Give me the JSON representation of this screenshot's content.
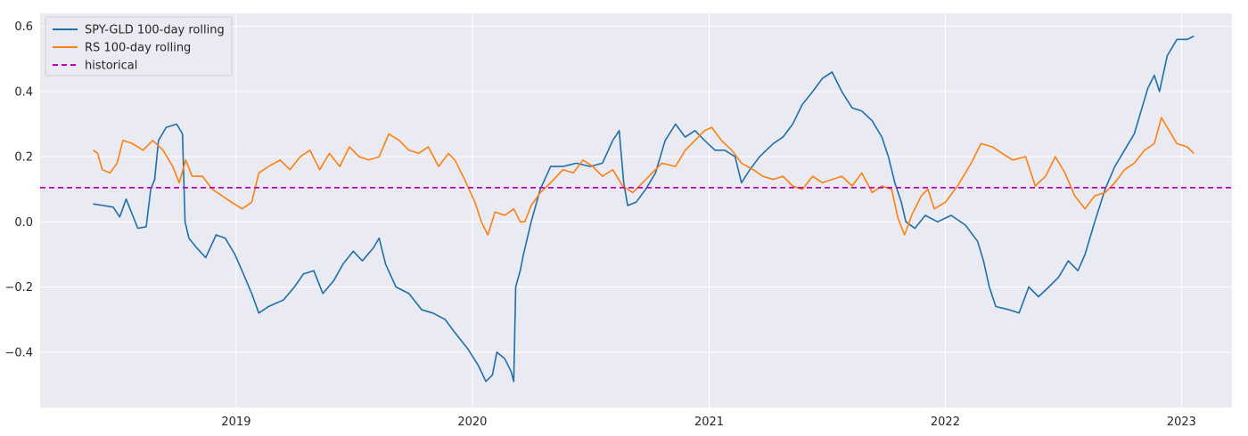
{
  "chart_data": {
    "type": "line",
    "title": "",
    "xlabel": "",
    "ylabel": "",
    "x_range": [
      "2018-03-04",
      "2023-03-20"
    ],
    "ylim": [
      -0.57,
      0.64
    ],
    "grid": true,
    "legend_position": "top-left",
    "x_ticks": [
      {
        "date": "2019-01-01",
        "label": "2019"
      },
      {
        "date": "2020-01-01",
        "label": "2020"
      },
      {
        "date": "2021-01-01",
        "label": "2021"
      },
      {
        "date": "2022-01-01",
        "label": "2022"
      },
      {
        "date": "2023-01-01",
        "label": "2023"
      }
    ],
    "y_ticks": [
      {
        "value": -0.4,
        "label": "−0.4"
      },
      {
        "value": -0.2,
        "label": "−0.2"
      },
      {
        "value": 0.0,
        "label": "0.0"
      },
      {
        "value": 0.2,
        "label": "0.2"
      },
      {
        "value": 0.4,
        "label": "0.4"
      },
      {
        "value": 0.6,
        "label": "0.6"
      }
    ],
    "colors": {
      "background": "#eaeaf2",
      "grid": "#ffffff",
      "spy_gld": "#1f6fa8",
      "rs": "#ff7f0e",
      "historical": "#bf00bf"
    },
    "series": [
      {
        "name": "SPY-GLD 100-day rolling",
        "color": "#1f6fa8",
        "style": "solid",
        "points": [
          [
            "2018-05-25",
            0.055
          ],
          [
            "2018-06-10",
            0.05
          ],
          [
            "2018-06-25",
            0.045
          ],
          [
            "2018-07-05",
            0.015
          ],
          [
            "2018-07-15",
            0.07
          ],
          [
            "2018-07-25",
            0.02
          ],
          [
            "2018-08-02",
            -0.02
          ],
          [
            "2018-08-15",
            -0.015
          ],
          [
            "2018-08-22",
            0.1
          ],
          [
            "2018-08-28",
            0.13
          ],
          [
            "2018-09-03",
            0.25
          ],
          [
            "2018-09-15",
            0.29
          ],
          [
            "2018-10-01",
            0.3
          ],
          [
            "2018-10-10",
            0.27
          ],
          [
            "2018-10-14",
            0.0
          ],
          [
            "2018-10-20",
            -0.05
          ],
          [
            "2018-11-01",
            -0.08
          ],
          [
            "2018-11-15",
            -0.11
          ],
          [
            "2018-12-01",
            -0.04
          ],
          [
            "2018-12-15",
            -0.05
          ],
          [
            "2018-12-30",
            -0.1
          ],
          [
            "2019-01-10",
            -0.15
          ],
          [
            "2019-01-25",
            -0.22
          ],
          [
            "2019-02-05",
            -0.28
          ],
          [
            "2019-02-20",
            -0.26
          ],
          [
            "2019-03-15",
            -0.24
          ],
          [
            "2019-04-01",
            -0.2
          ],
          [
            "2019-04-15",
            -0.16
          ],
          [
            "2019-05-01",
            -0.15
          ],
          [
            "2019-05-15",
            -0.22
          ],
          [
            "2019-06-01",
            -0.18
          ],
          [
            "2019-06-15",
            -0.13
          ],
          [
            "2019-07-01",
            -0.09
          ],
          [
            "2019-07-15",
            -0.12
          ],
          [
            "2019-08-01",
            -0.08
          ],
          [
            "2019-08-10",
            -0.05
          ],
          [
            "2019-08-20",
            -0.13
          ],
          [
            "2019-09-05",
            -0.2
          ],
          [
            "2019-09-25",
            -0.22
          ],
          [
            "2019-10-15",
            -0.27
          ],
          [
            "2019-11-01",
            -0.28
          ],
          [
            "2019-11-20",
            -0.3
          ],
          [
            "2019-12-05",
            -0.34
          ],
          [
            "2019-12-25",
            -0.39
          ],
          [
            "2020-01-10",
            -0.44
          ],
          [
            "2020-01-22",
            -0.49
          ],
          [
            "2020-02-01",
            -0.47
          ],
          [
            "2020-02-08",
            -0.4
          ],
          [
            "2020-02-20",
            -0.42
          ],
          [
            "2020-03-01",
            -0.46
          ],
          [
            "2020-03-05",
            -0.49
          ],
          [
            "2020-03-08",
            -0.2
          ],
          [
            "2020-03-15",
            -0.15
          ],
          [
            "2020-03-20",
            -0.1
          ],
          [
            "2020-04-01",
            0.0
          ],
          [
            "2020-04-15",
            0.1
          ],
          [
            "2020-05-01",
            0.17
          ],
          [
            "2020-05-20",
            0.17
          ],
          [
            "2020-06-10",
            0.18
          ],
          [
            "2020-07-01",
            0.17
          ],
          [
            "2020-07-20",
            0.18
          ],
          [
            "2020-08-05",
            0.25
          ],
          [
            "2020-08-15",
            0.28
          ],
          [
            "2020-08-22",
            0.12
          ],
          [
            "2020-08-28",
            0.05
          ],
          [
            "2020-09-10",
            0.06
          ],
          [
            "2020-09-25",
            0.1
          ],
          [
            "2020-10-10",
            0.15
          ],
          [
            "2020-10-25",
            0.25
          ],
          [
            "2020-11-10",
            0.3
          ],
          [
            "2020-11-25",
            0.26
          ],
          [
            "2020-12-10",
            0.28
          ],
          [
            "2020-12-25",
            0.25
          ],
          [
            "2021-01-10",
            0.22
          ],
          [
            "2021-01-25",
            0.22
          ],
          [
            "2021-02-10",
            0.2
          ],
          [
            "2021-02-20",
            0.12
          ],
          [
            "2021-03-05",
            0.16
          ],
          [
            "2021-03-20",
            0.2
          ],
          [
            "2021-04-10",
            0.24
          ],
          [
            "2021-04-25",
            0.26
          ],
          [
            "2021-05-10",
            0.3
          ],
          [
            "2021-05-25",
            0.36
          ],
          [
            "2021-06-10",
            0.4
          ],
          [
            "2021-06-25",
            0.44
          ],
          [
            "2021-07-10",
            0.46
          ],
          [
            "2021-07-25",
            0.4
          ],
          [
            "2021-08-10",
            0.35
          ],
          [
            "2021-08-25",
            0.34
          ],
          [
            "2021-09-10",
            0.31
          ],
          [
            "2021-09-25",
            0.26
          ],
          [
            "2021-10-05",
            0.2
          ],
          [
            "2021-10-15",
            0.12
          ],
          [
            "2021-10-25",
            0.06
          ],
          [
            "2021-11-01",
            0.0
          ],
          [
            "2021-11-15",
            -0.02
          ],
          [
            "2021-12-01",
            0.02
          ],
          [
            "2021-12-20",
            0.0
          ],
          [
            "2022-01-10",
            0.02
          ],
          [
            "2022-02-01",
            -0.01
          ],
          [
            "2022-02-20",
            -0.06
          ],
          [
            "2022-03-01",
            -0.12
          ],
          [
            "2022-03-10",
            -0.2
          ],
          [
            "2022-03-20",
            -0.26
          ],
          [
            "2022-04-10",
            -0.27
          ],
          [
            "2022-04-25",
            -0.28
          ],
          [
            "2022-05-10",
            -0.2
          ],
          [
            "2022-05-25",
            -0.23
          ],
          [
            "2022-06-10",
            -0.2
          ],
          [
            "2022-06-25",
            -0.17
          ],
          [
            "2022-07-10",
            -0.12
          ],
          [
            "2022-07-25",
            -0.15
          ],
          [
            "2022-08-05",
            -0.1
          ],
          [
            "2022-08-20",
            0.0
          ],
          [
            "2022-09-05",
            0.1
          ],
          [
            "2022-09-20",
            0.17
          ],
          [
            "2022-10-05",
            0.22
          ],
          [
            "2022-10-20",
            0.27
          ],
          [
            "2022-11-01",
            0.35
          ],
          [
            "2022-11-10",
            0.41
          ],
          [
            "2022-11-20",
            0.45
          ],
          [
            "2022-11-28",
            0.4
          ],
          [
            "2022-12-10",
            0.51
          ],
          [
            "2022-12-25",
            0.56
          ],
          [
            "2023-01-10",
            0.56
          ],
          [
            "2023-01-20",
            0.57
          ]
        ]
      },
      {
        "name": "RS 100-day rolling",
        "color": "#ff7f0e",
        "style": "solid",
        "points": [
          [
            "2018-05-25",
            0.22
          ],
          [
            "2018-06-01",
            0.21
          ],
          [
            "2018-06-08",
            0.16
          ],
          [
            "2018-06-20",
            0.15
          ],
          [
            "2018-07-01",
            0.18
          ],
          [
            "2018-07-10",
            0.25
          ],
          [
            "2018-07-25",
            0.24
          ],
          [
            "2018-08-10",
            0.22
          ],
          [
            "2018-08-25",
            0.25
          ],
          [
            "2018-09-10",
            0.22
          ],
          [
            "2018-09-25",
            0.17
          ],
          [
            "2018-10-05",
            0.12
          ],
          [
            "2018-10-15",
            0.19
          ],
          [
            "2018-10-25",
            0.14
          ],
          [
            "2018-11-10",
            0.14
          ],
          [
            "2018-11-25",
            0.1
          ],
          [
            "2018-12-10",
            0.08
          ],
          [
            "2018-12-25",
            0.06
          ],
          [
            "2019-01-10",
            0.04
          ],
          [
            "2019-01-25",
            0.06
          ],
          [
            "2019-02-05",
            0.15
          ],
          [
            "2019-02-20",
            0.17
          ],
          [
            "2019-03-10",
            0.19
          ],
          [
            "2019-03-25",
            0.16
          ],
          [
            "2019-04-10",
            0.2
          ],
          [
            "2019-04-25",
            0.22
          ],
          [
            "2019-05-10",
            0.16
          ],
          [
            "2019-05-25",
            0.21
          ],
          [
            "2019-06-10",
            0.17
          ],
          [
            "2019-06-25",
            0.23
          ],
          [
            "2019-07-10",
            0.2
          ],
          [
            "2019-07-25",
            0.19
          ],
          [
            "2019-08-10",
            0.2
          ],
          [
            "2019-08-25",
            0.27
          ],
          [
            "2019-09-10",
            0.25
          ],
          [
            "2019-09-25",
            0.22
          ],
          [
            "2019-10-10",
            0.21
          ],
          [
            "2019-10-25",
            0.23
          ],
          [
            "2019-11-10",
            0.17
          ],
          [
            "2019-11-25",
            0.21
          ],
          [
            "2019-12-05",
            0.19
          ],
          [
            "2019-12-20",
            0.13
          ],
          [
            "2020-01-05",
            0.06
          ],
          [
            "2020-01-15",
            0.0
          ],
          [
            "2020-01-25",
            -0.04
          ],
          [
            "2020-02-05",
            0.03
          ],
          [
            "2020-02-20",
            0.02
          ],
          [
            "2020-03-05",
            0.04
          ],
          [
            "2020-03-15",
            0.0
          ],
          [
            "2020-03-22",
            0.0
          ],
          [
            "2020-04-01",
            0.05
          ],
          [
            "2020-04-15",
            0.09
          ],
          [
            "2020-05-01",
            0.12
          ],
          [
            "2020-05-20",
            0.16
          ],
          [
            "2020-06-05",
            0.15
          ],
          [
            "2020-06-20",
            0.19
          ],
          [
            "2020-07-05",
            0.17
          ],
          [
            "2020-07-20",
            0.14
          ],
          [
            "2020-08-05",
            0.16
          ],
          [
            "2020-08-20",
            0.11
          ],
          [
            "2020-09-05",
            0.09
          ],
          [
            "2020-09-20",
            0.12
          ],
          [
            "2020-10-05",
            0.15
          ],
          [
            "2020-10-20",
            0.18
          ],
          [
            "2020-11-10",
            0.17
          ],
          [
            "2020-11-25",
            0.22
          ],
          [
            "2020-12-10",
            0.25
          ],
          [
            "2020-12-25",
            0.28
          ],
          [
            "2021-01-05",
            0.29
          ],
          [
            "2021-01-20",
            0.25
          ],
          [
            "2021-02-05",
            0.22
          ],
          [
            "2021-02-20",
            0.18
          ],
          [
            "2021-03-10",
            0.16
          ],
          [
            "2021-03-25",
            0.14
          ],
          [
            "2021-04-10",
            0.13
          ],
          [
            "2021-04-25",
            0.14
          ],
          [
            "2021-05-10",
            0.11
          ],
          [
            "2021-05-25",
            0.1
          ],
          [
            "2021-06-10",
            0.14
          ],
          [
            "2021-06-25",
            0.12
          ],
          [
            "2021-07-10",
            0.13
          ],
          [
            "2021-07-25",
            0.14
          ],
          [
            "2021-08-10",
            0.11
          ],
          [
            "2021-08-25",
            0.15
          ],
          [
            "2021-09-10",
            0.09
          ],
          [
            "2021-09-25",
            0.11
          ],
          [
            "2021-10-10",
            0.1
          ],
          [
            "2021-10-20",
            0.01
          ],
          [
            "2021-10-30",
            -0.04
          ],
          [
            "2021-11-10",
            0.02
          ],
          [
            "2021-11-25",
            0.08
          ],
          [
            "2021-12-05",
            0.1
          ],
          [
            "2021-12-15",
            0.04
          ],
          [
            "2022-01-01",
            0.06
          ],
          [
            "2022-01-20",
            0.11
          ],
          [
            "2022-02-10",
            0.18
          ],
          [
            "2022-02-25",
            0.24
          ],
          [
            "2022-03-15",
            0.23
          ],
          [
            "2022-03-30",
            0.21
          ],
          [
            "2022-04-15",
            0.19
          ],
          [
            "2022-05-05",
            0.2
          ],
          [
            "2022-05-20",
            0.11
          ],
          [
            "2022-06-05",
            0.14
          ],
          [
            "2022-06-20",
            0.2
          ],
          [
            "2022-07-05",
            0.15
          ],
          [
            "2022-07-20",
            0.08
          ],
          [
            "2022-08-05",
            0.04
          ],
          [
            "2022-08-20",
            0.08
          ],
          [
            "2022-09-05",
            0.09
          ],
          [
            "2022-09-20",
            0.12
          ],
          [
            "2022-10-05",
            0.16
          ],
          [
            "2022-10-20",
            0.18
          ],
          [
            "2022-11-05",
            0.22
          ],
          [
            "2022-11-20",
            0.24
          ],
          [
            "2022-12-01",
            0.32
          ],
          [
            "2022-12-10",
            0.29
          ],
          [
            "2022-12-25",
            0.24
          ],
          [
            "2023-01-10",
            0.23
          ],
          [
            "2023-01-20",
            0.21
          ]
        ]
      },
      {
        "name": "historical",
        "color": "#bf00bf",
        "style": "dashed",
        "value": 0.105
      }
    ]
  }
}
